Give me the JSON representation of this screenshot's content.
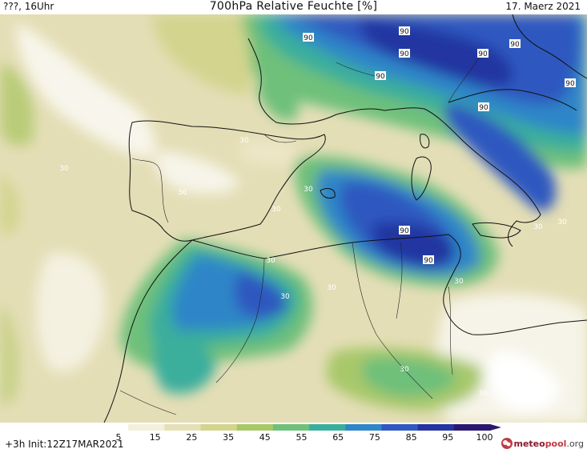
{
  "header": {
    "left": "???, 16Uhr",
    "title": "700hPa Relative Feuchte [%]",
    "date": "17. Maerz 2021"
  },
  "footer": {
    "init": "+3h  Init:12Z17MAR2021",
    "logo_prefix": "meteo",
    "logo_suffix": "pool",
    "logo_tld": ".org"
  },
  "legend": {
    "ticks": [
      "5",
      "15",
      "25",
      "35",
      "45",
      "55",
      "65",
      "75",
      "85",
      "95",
      "100"
    ],
    "colors": [
      "#ffffff",
      "#f3f0dc",
      "#e6e0b8",
      "#d3d48e",
      "#a8c86a",
      "#6ec07a",
      "#3aae9c",
      "#2f86c8",
      "#2f59c0",
      "#2434a0",
      "#2a1870"
    ]
  },
  "contour_labels": [
    {
      "text": "90"
    },
    {
      "text": "90"
    },
    {
      "text": "90"
    },
    {
      "text": "90"
    },
    {
      "text": "90"
    },
    {
      "text": "90"
    },
    {
      "text": "90"
    },
    {
      "text": "90"
    },
    {
      "text": "90"
    },
    {
      "text": "90"
    },
    {
      "text": "30"
    },
    {
      "text": "30"
    },
    {
      "text": "30"
    },
    {
      "text": "30"
    },
    {
      "text": "30"
    },
    {
      "text": "30"
    },
    {
      "text": "30"
    },
    {
      "text": "30"
    },
    {
      "text": "30"
    },
    {
      "text": "30"
    },
    {
      "text": "30"
    },
    {
      "text": "30"
    },
    {
      "text": "30"
    }
  ]
}
